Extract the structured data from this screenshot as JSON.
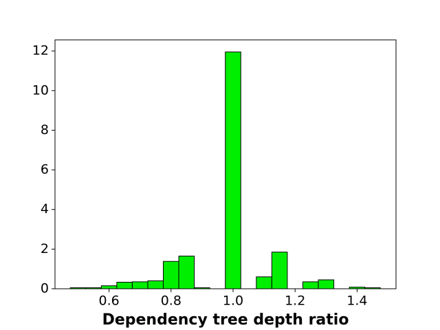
{
  "chart_data": {
    "type": "histogram",
    "x_label": "Dependency tree depth ratio",
    "bins": [
      0.475,
      0.525,
      0.575,
      0.625,
      0.675,
      0.725,
      0.775,
      0.825,
      0.875,
      0.925,
      0.975,
      1.025,
      1.075,
      1.125,
      1.175,
      1.225,
      1.275,
      1.325,
      1.375,
      1.425,
      1.475
    ],
    "values": [
      0.05,
      0.05,
      0.15,
      0.33,
      0.35,
      0.4,
      1.38,
      1.65,
      0.05,
      0,
      11.95,
      0,
      0.6,
      1.85,
      0,
      0.35,
      0.45,
      0,
      0.08,
      0.05
    ],
    "color": "#00ee00",
    "xlim": [
      0.4257,
      1.5255
    ],
    "ylim": [
      0,
      12.56
    ],
    "xticks": [
      0.6,
      0.8,
      {
        "value": 1,
        "label": "1.0"
      },
      1.2,
      1.4
    ],
    "yticks": [
      0,
      2,
      4,
      6,
      8,
      10,
      12
    ]
  }
}
